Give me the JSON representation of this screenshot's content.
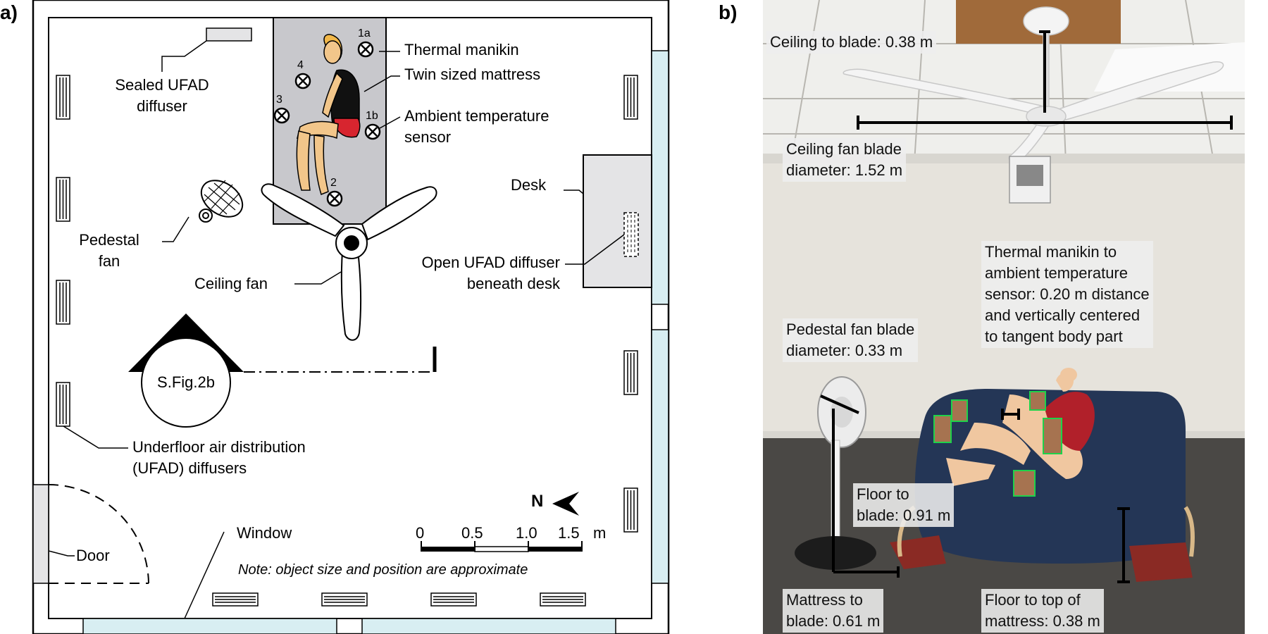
{
  "panel_a": {
    "label": "a)",
    "sensors": [
      "1a",
      "4",
      "3",
      "1b",
      "2"
    ],
    "labels": {
      "sealed_diffuser": [
        "Sealed UFAD",
        "diffuser"
      ],
      "thermal_manikin": "Thermal manikin",
      "twin_mattress": "Twin sized mattress",
      "ambient_sensor": [
        "Ambient temperature",
        "sensor"
      ],
      "desk": "Desk",
      "pedestal_fan": [
        "Pedestal",
        "fan"
      ],
      "open_diffuser": [
        "Open UFAD diffuser",
        "beneath desk"
      ],
      "ceiling_fan": "Ceiling fan",
      "sfig": "S.Fig.2b",
      "ufad_diffusers": [
        "Underfloor air distribution",
        "(UFAD) diffusers"
      ],
      "north": "N",
      "window": "Window",
      "door": "Door",
      "note": "Note: object size and position are approximate"
    },
    "scale_bar": {
      "ticks": [
        "0",
        "0.5",
        "1.0",
        "1.5"
      ],
      "unit": "m"
    }
  },
  "panel_b": {
    "label": "b)",
    "annotations": {
      "ceiling_to_blade": "Ceiling to blade: 0.38 m",
      "fan_diameter": [
        "Ceiling fan blade",
        "diameter: 1.52 m"
      ],
      "manikin_sensor": [
        "Thermal manikin to",
        "ambient temperature",
        "sensor: 0.20 m distance",
        "and vertically centered",
        "to tangent body part"
      ],
      "pedestal_diameter": [
        "Pedestal fan blade",
        "diameter: 0.33 m"
      ],
      "floor_to_blade": [
        "Floor to",
        "blade: 0.91 m"
      ],
      "mattress_to_blade": [
        "Mattress to",
        "blade: 0.61 m"
      ],
      "floor_to_mattress": [
        "Floor to top of",
        "mattress: 0.38 m"
      ]
    }
  },
  "colors": {
    "window": "#d8eef2",
    "mattress_gray": "#c8c8cc",
    "desk_gray": "#e4e4e6",
    "manikin_skin": "#f2c68a",
    "manikin_shorts": "#d7252f",
    "photo_wall": "#e6e3dc",
    "photo_floor": "#4a4845",
    "photo_mattress": "#243656",
    "sensor_green": "#1fd24a"
  }
}
